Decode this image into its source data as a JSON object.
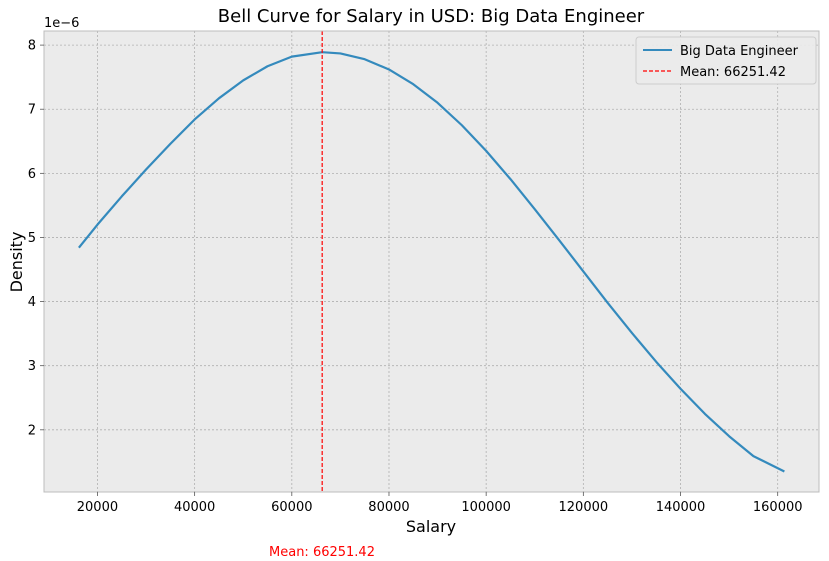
{
  "chart_data": {
    "type": "line",
    "title": "Bell Curve for Salary in USD: Big Data Engineer",
    "xlabel": "Salary",
    "ylabel": "Density",
    "y_offset_label": "1e−6",
    "xlim": [
      9000,
      168500
    ],
    "ylim": [
      1.03,
      8.22
    ],
    "x_ticks": [
      20000,
      40000,
      60000,
      80000,
      100000,
      120000,
      140000,
      160000
    ],
    "x_tick_labels": [
      "20000",
      "40000",
      "60000",
      "80000",
      "100000",
      "120000",
      "140000",
      "160000"
    ],
    "y_ticks": [
      2,
      3,
      4,
      5,
      6,
      7,
      8
    ],
    "y_tick_labels": [
      "2",
      "3",
      "4",
      "5",
      "6",
      "7",
      "8"
    ],
    "grid": true,
    "legend_position": "top-right",
    "series": [
      {
        "name": "Big Data Engineer",
        "color": "#348abd",
        "x": [
          16178,
          20000,
          25000,
          30000,
          35000,
          40000,
          45000,
          50000,
          55000,
          60000,
          66251,
          70000,
          75000,
          80000,
          85000,
          90000,
          95000,
          100000,
          105000,
          110000,
          115000,
          120000,
          125000,
          130000,
          135000,
          140000,
          145000,
          150000,
          155000,
          161377
        ],
        "y": [
          4.84,
          5.2,
          5.64,
          6.06,
          6.46,
          6.84,
          7.17,
          7.45,
          7.67,
          7.82,
          7.89,
          7.87,
          7.78,
          7.62,
          7.39,
          7.1,
          6.75,
          6.35,
          5.91,
          5.44,
          4.96,
          4.47,
          3.98,
          3.51,
          3.06,
          2.64,
          2.25,
          1.9,
          1.59,
          1.35
        ]
      }
    ],
    "reference_lines": [
      {
        "name": "Mean: 66251.42",
        "orientation": "vertical",
        "x": 66251.42,
        "color": "#ff0000",
        "style": "dashed"
      }
    ],
    "annotation": {
      "text": "Mean: 66251.42",
      "color": "#ff0000"
    }
  },
  "colors": {
    "plot_background": "#ebebeb",
    "grid": "#b0b0b0",
    "axis_frame": "#bcbcbc",
    "series": "#348abd",
    "mean_line": "#ff0000"
  }
}
